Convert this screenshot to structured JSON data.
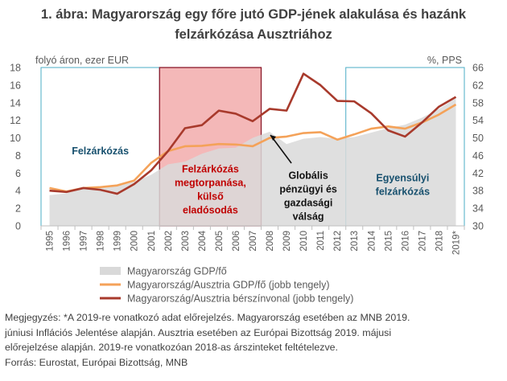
{
  "title": {
    "line1": "1. ábra: Magyarország egy főre jutó GDP-jének alakulása és hazánk",
    "line2": "felzárkózása Ausztriához"
  },
  "chart_data": {
    "type": "area+line",
    "left_axis_label": "folyó áron, ezer EUR",
    "right_axis_label": "%, PPS",
    "ylim_left": [
      0,
      18
    ],
    "yticks_left": [
      "0",
      "2",
      "4",
      "6",
      "8",
      "10",
      "12",
      "14",
      "16",
      "18"
    ],
    "ylim_right": [
      30,
      66
    ],
    "yticks_right": [
      "30",
      "34",
      "38",
      "42",
      "46",
      "50",
      "54",
      "58",
      "62",
      "66"
    ],
    "categories": [
      "1995",
      "1996",
      "1997",
      "1998",
      "1999",
      "2000",
      "2001",
      "2002",
      "2003",
      "2004",
      "2005",
      "2006",
      "2007",
      "2008",
      "2009",
      "2010",
      "2011",
      "2012",
      "2013",
      "2014",
      "2015",
      "2016",
      "2017",
      "2018",
      "2019*"
    ],
    "series": [
      {
        "name": "Magyarország GDP/fő",
        "axis": "left",
        "kind": "area",
        "color": "#d9d9d9",
        "values": [
          3.5,
          3.7,
          4.2,
          4.3,
          4.5,
          5.0,
          5.8,
          7.0,
          7.3,
          8.2,
          8.8,
          8.9,
          10.0,
          10.7,
          9.3,
          9.9,
          10.1,
          9.9,
          10.1,
          10.6,
          11.1,
          11.5,
          12.3,
          13.3,
          14.5
        ]
      },
      {
        "name": "Magyarország/Ausztria GDP/fő (jobb tengely)",
        "axis": "right",
        "kind": "line",
        "color": "#f4a259",
        "values": [
          38.6,
          37.8,
          38.6,
          38.8,
          39.2,
          40.3,
          44.3,
          47.0,
          48.1,
          48.2,
          48.6,
          48.5,
          48.1,
          50.0,
          50.3,
          51.1,
          51.3,
          49.6,
          50.8,
          52.1,
          52.6,
          52.1,
          53.5,
          55.3,
          57.6
        ]
      },
      {
        "name": "Magyarország/Ausztria bérszínvonal (jobb tengely)",
        "axis": "right",
        "kind": "line",
        "color": "#a83a2c",
        "values": [
          38.0,
          37.7,
          38.6,
          38.2,
          37.3,
          39.5,
          42.6,
          47.0,
          52.2,
          52.9,
          56.2,
          55.5,
          53.8,
          56.6,
          56.2,
          64.6,
          62.0,
          58.4,
          58.3,
          55.6,
          51.7,
          50.3,
          53.5,
          57.1,
          59.3
        ]
      }
    ],
    "periods": [
      {
        "label_lines": [
          "Felzárkózás"
        ],
        "start": "1995",
        "end": "2002",
        "kind": "outline",
        "color": "#4bacc6",
        "text_color": "#17506e"
      },
      {
        "label_lines": [
          "Felzárkózás",
          "megtorpanása,",
          "külső",
          "eladósodás"
        ],
        "start": "2002",
        "end": "2008",
        "kind": "filled",
        "color": "#f4b8b8",
        "border": "#8b1a2b",
        "text_color": "#c00000"
      },
      {
        "label_lines": [
          "Globális",
          "pénzügyi és",
          "gazdasági",
          "válság"
        ],
        "start": "2008",
        "end": "2013",
        "kind": "none",
        "text_color": "#111111"
      },
      {
        "label_lines": [
          "Egyensúlyi",
          "felzárkózás"
        ],
        "start": "2013",
        "end": "2019*",
        "kind": "outline",
        "color": "#4bacc6",
        "text_color": "#17506e"
      }
    ],
    "legend_position": "bottom",
    "grid": false
  },
  "notes": {
    "line1": "Megjegyzés: *A 2019-re vonatkozó adat előrejelzés. Magyarország esetében az MNB 2019.",
    "line2": "júniusi Inflációs Jelentése alapján. Ausztria esetében az Európai Bizottság 2019. májusi",
    "line3": "előrejelzése alapján. 2019-re vonatkozóan 2018-as árszinteket feltételezve.",
    "line4": "Forrás: Eurostat, Európai Bizottság, MNB"
  }
}
